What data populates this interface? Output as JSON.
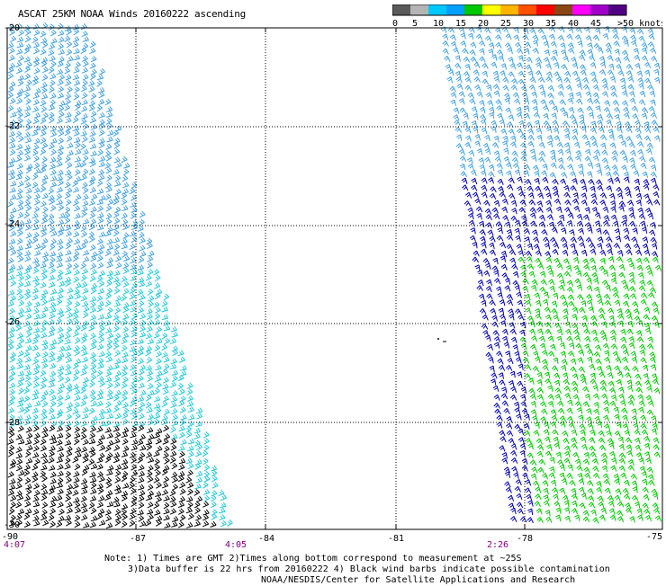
{
  "title": "ASCAT 25KM NOAA Winds 20160222 ascending",
  "legend": {
    "labels": [
      "0",
      "5",
      "10",
      "15",
      "20",
      "25",
      "30",
      "35",
      "40",
      "45",
      ">50 knots"
    ],
    "colors": [
      "#5a5a5a",
      "#b4b4b4",
      "#00c8ff",
      "#00a0ff",
      "#00c800",
      "#ffff00",
      "#ffb400",
      "#ff5000",
      "#ff0000",
      "#8b4513",
      "#ff00ff",
      "#a000c8",
      "#500082"
    ]
  },
  "map": {
    "lon_ticks": [
      "-90",
      "-87",
      "-84",
      "-81",
      "-78",
      "-75"
    ],
    "lat_ticks": [
      "-20",
      "-22",
      "-24",
      "-26",
      "-28",
      "-30"
    ],
    "times": [
      "4:07",
      "4:05",
      "2:26"
    ]
  },
  "notes": {
    "line1": "Note: 1) Times are GMT 2)Times along bottom correspond to measurement at ~25S",
    "line2": "3)Data buffer is 22 hrs from 20160222 4) Black wind barbs indicate possible contamination",
    "line3": "NOAA/NESDIS/Center for Satellite Applications and Research"
  },
  "colors": {
    "light_blue": "#40a0e0",
    "cyan": "#20c8d8",
    "dark_blue": "#0000b0",
    "green": "#00c800",
    "contaminated": "#000000",
    "time_label": "#800080"
  }
}
